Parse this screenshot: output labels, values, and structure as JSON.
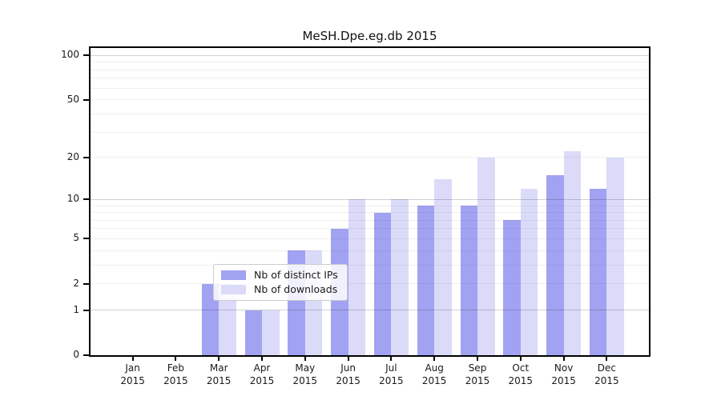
{
  "chart_data": {
    "type": "bar",
    "title": "MeSH.Dpe.eg.db 2015",
    "categories": [
      "Jan",
      "Feb",
      "Mar",
      "Apr",
      "May",
      "Jun",
      "Jul",
      "Aug",
      "Sep",
      "Oct",
      "Nov",
      "Dec"
    ],
    "category_year": "2015",
    "series": [
      {
        "name": "Nb of distinct IPs",
        "color": "#a2a2f2",
        "values": [
          0,
          0,
          2,
          1,
          4,
          6,
          8,
          9,
          9,
          7,
          15,
          12
        ]
      },
      {
        "name": "Nb of downloads",
        "color": "#dbdbf9",
        "values": [
          0,
          0,
          2,
          1,
          4,
          10,
          10,
          14,
          20,
          12,
          22,
          20
        ]
      }
    ],
    "xlabel": "",
    "ylabel": "",
    "y_axis": {
      "scale": "log1p",
      "tick_values": [
        0,
        1,
        2,
        5,
        10,
        20,
        50,
        100
      ],
      "major_gridlines": [
        1,
        10,
        100
      ],
      "minor_gridlines": [
        2,
        3,
        4,
        5,
        6,
        7,
        8,
        9,
        20,
        30,
        40,
        50,
        60,
        70,
        80,
        90
      ],
      "range": [
        0,
        112
      ]
    },
    "grid": true,
    "legend_position": "lower center",
    "background_color": "#ffffff",
    "text_color": "#1a1a1a"
  }
}
